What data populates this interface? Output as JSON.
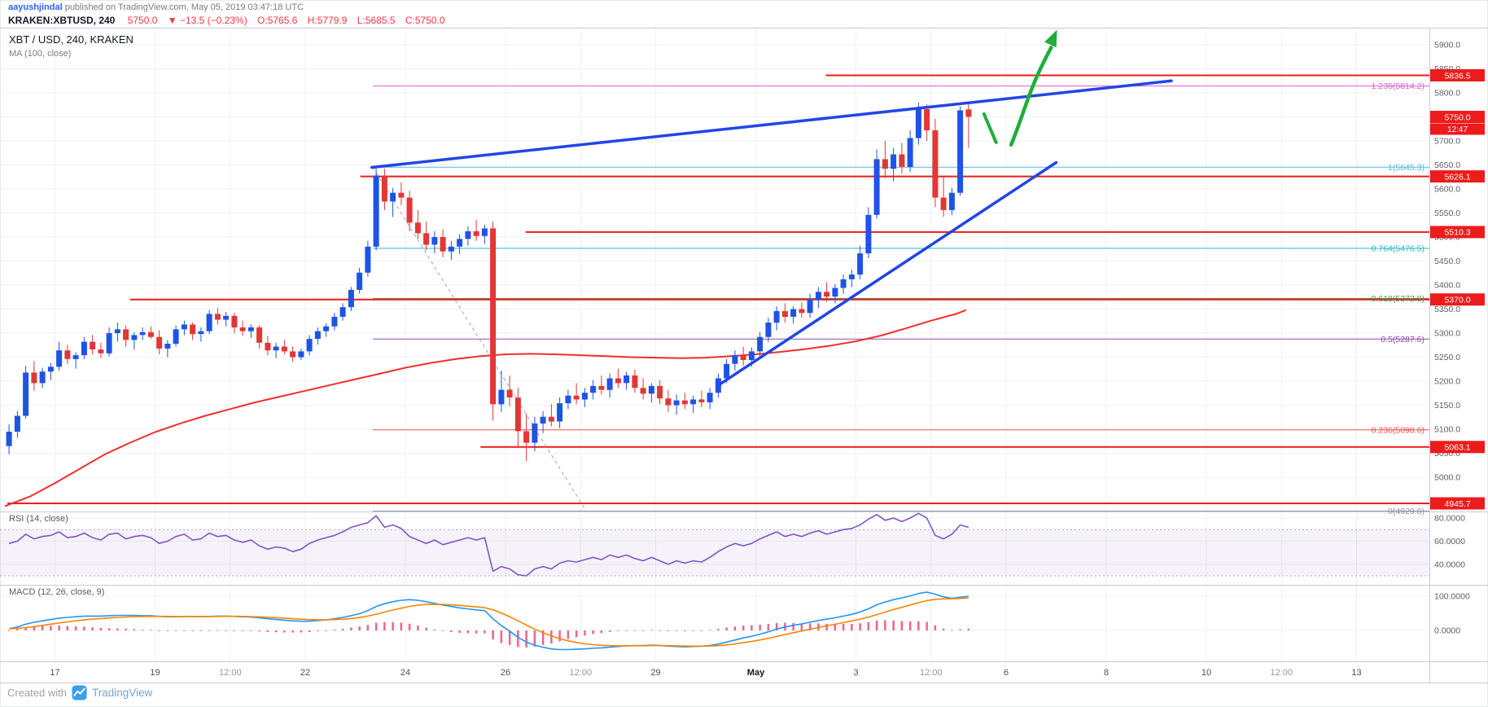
{
  "header": {
    "author": "aayushjindal",
    "published": " published on TradingView.com, May 05, 2019 03:47:18 UTC",
    "symbol": "KRAKEN:XBTUSD, 240",
    "last": "5750.0",
    "change": "▼ −13.5 (−0.23%)",
    "o_label": "O:",
    "o_val": "5765.6",
    "h_label": "H:",
    "h_val": "5779.9",
    "l_label": "L:",
    "l_val": "5685.5",
    "c_label": "C:",
    "c_val": "5750.0"
  },
  "legends": {
    "symbol": "XBT / USD, 240, KRAKEN",
    "ma": "MA (100, close)",
    "rsi": "RSI (14, close)",
    "macd": "MACD (12, 26, close, 9)"
  },
  "footer": {
    "created_with": "Created with",
    "brand": "TradingView",
    "logo_icon": "tradingview-logo"
  },
  "colors": {
    "up": "#1e53e5",
    "down": "#e33636",
    "ma": "#f22e2e",
    "red_line": "#ec1c1c",
    "trend_blue": "#2146e6",
    "green": "#1fad3c",
    "grid": "#eef0f3",
    "separator": "#c9ccd3",
    "axis_text": "#5a5e68",
    "time_text": "#4a4e57",
    "time_text_light": "#9598a1",
    "month_text": "#131722",
    "rsi_line": "#7e57c2",
    "rsi_band": "rgba(126,87,194,0.08)",
    "rsi_band_edge": "#aaadb8",
    "macd_line": "#2196f3",
    "macd_signal": "#f78500",
    "macd_hist": "#f06292",
    "dashed": "#a0a3ab",
    "badge_text": "#ffffff"
  },
  "chart_data": {
    "type": "candlestick",
    "symbol": "KRAKEN:XBTUSD",
    "interval": "240",
    "start": "2019-04-16 00:00 UTC",
    "candles_per_day": 6,
    "candles": [
      [
        5065,
        5110,
        5048,
        5095
      ],
      [
        5095,
        5138,
        5082,
        5128
      ],
      [
        5128,
        5232,
        5122,
        5218
      ],
      [
        5218,
        5242,
        5180,
        5196
      ],
      [
        5196,
        5228,
        5186,
        5220
      ],
      [
        5220,
        5238,
        5202,
        5230
      ],
      [
        5230,
        5282,
        5222,
        5264
      ],
      [
        5264,
        5276,
        5236,
        5246
      ],
      [
        5246,
        5260,
        5226,
        5254
      ],
      [
        5254,
        5292,
        5246,
        5282
      ],
      [
        5282,
        5296,
        5256,
        5266
      ],
      [
        5266,
        5280,
        5248,
        5258
      ],
      [
        5258,
        5312,
        5252,
        5300
      ],
      [
        5300,
        5322,
        5282,
        5308
      ],
      [
        5308,
        5316,
        5272,
        5286
      ],
      [
        5286,
        5302,
        5266,
        5296
      ],
      [
        5296,
        5312,
        5286,
        5302
      ],
      [
        5302,
        5314,
        5288,
        5292
      ],
      [
        5292,
        5306,
        5256,
        5268
      ],
      [
        5268,
        5286,
        5250,
        5278
      ],
      [
        5278,
        5316,
        5272,
        5308
      ],
      [
        5308,
        5326,
        5296,
        5318
      ],
      [
        5318,
        5322,
        5286,
        5298
      ],
      [
        5298,
        5312,
        5282,
        5304
      ],
      [
        5304,
        5348,
        5298,
        5340
      ],
      [
        5340,
        5352,
        5318,
        5328
      ],
      [
        5328,
        5344,
        5314,
        5336
      ],
      [
        5336,
        5342,
        5300,
        5312
      ],
      [
        5312,
        5326,
        5294,
        5304
      ],
      [
        5304,
        5318,
        5290,
        5312
      ],
      [
        5312,
        5316,
        5268,
        5280
      ],
      [
        5280,
        5294,
        5254,
        5264
      ],
      [
        5264,
        5280,
        5248,
        5272
      ],
      [
        5272,
        5286,
        5256,
        5262
      ],
      [
        5262,
        5272,
        5240,
        5250
      ],
      [
        5250,
        5268,
        5244,
        5262
      ],
      [
        5262,
        5296,
        5254,
        5288
      ],
      [
        5288,
        5312,
        5276,
        5304
      ],
      [
        5304,
        5320,
        5292,
        5314
      ],
      [
        5314,
        5342,
        5306,
        5334
      ],
      [
        5334,
        5362,
        5326,
        5354
      ],
      [
        5354,
        5396,
        5346,
        5390
      ],
      [
        5390,
        5436,
        5382,
        5426
      ],
      [
        5426,
        5492,
        5418,
        5480
      ],
      [
        5480,
        5648,
        5472,
        5628
      ],
      [
        5628,
        5642,
        5556,
        5574
      ],
      [
        5574,
        5602,
        5542,
        5592
      ],
      [
        5592,
        5614,
        5566,
        5582
      ],
      [
        5582,
        5596,
        5512,
        5530
      ],
      [
        5530,
        5556,
        5496,
        5508
      ],
      [
        5508,
        5532,
        5472,
        5484
      ],
      [
        5484,
        5512,
        5466,
        5500
      ],
      [
        5500,
        5516,
        5458,
        5470
      ],
      [
        5470,
        5492,
        5452,
        5480
      ],
      [
        5480,
        5506,
        5464,
        5496
      ],
      [
        5496,
        5522,
        5482,
        5512
      ],
      [
        5512,
        5536,
        5492,
        5502
      ],
      [
        5502,
        5526,
        5486,
        5518
      ],
      [
        5518,
        5532,
        5118,
        5152
      ],
      [
        5152,
        5222,
        5136,
        5182
      ],
      [
        5182,
        5212,
        5148,
        5166
      ],
      [
        5166,
        5186,
        5062,
        5096
      ],
      [
        5096,
        5132,
        5034,
        5072
      ],
      [
        5072,
        5126,
        5054,
        5112
      ],
      [
        5112,
        5138,
        5092,
        5126
      ],
      [
        5126,
        5152,
        5106,
        5116
      ],
      [
        5116,
        5166,
        5102,
        5154
      ],
      [
        5154,
        5182,
        5142,
        5170
      ],
      [
        5170,
        5196,
        5152,
        5162
      ],
      [
        5162,
        5186,
        5146,
        5176
      ],
      [
        5176,
        5202,
        5162,
        5190
      ],
      [
        5190,
        5212,
        5172,
        5182
      ],
      [
        5182,
        5216,
        5166,
        5206
      ],
      [
        5206,
        5226,
        5186,
        5196
      ],
      [
        5196,
        5220,
        5182,
        5212
      ],
      [
        5212,
        5224,
        5176,
        5186
      ],
      [
        5186,
        5206,
        5162,
        5174
      ],
      [
        5174,
        5196,
        5156,
        5190
      ],
      [
        5190,
        5202,
        5152,
        5164
      ],
      [
        5164,
        5182,
        5136,
        5150
      ],
      [
        5150,
        5172,
        5130,
        5160
      ],
      [
        5160,
        5176,
        5142,
        5152
      ],
      [
        5152,
        5170,
        5134,
        5162
      ],
      [
        5162,
        5180,
        5146,
        5156
      ],
      [
        5156,
        5186,
        5142,
        5176
      ],
      [
        5176,
        5216,
        5166,
        5206
      ],
      [
        5206,
        5246,
        5196,
        5236
      ],
      [
        5236,
        5264,
        5222,
        5254
      ],
      [
        5254,
        5272,
        5232,
        5244
      ],
      [
        5244,
        5270,
        5230,
        5262
      ],
      [
        5262,
        5302,
        5252,
        5292
      ],
      [
        5292,
        5332,
        5282,
        5322
      ],
      [
        5322,
        5356,
        5306,
        5346
      ],
      [
        5346,
        5362,
        5322,
        5334
      ],
      [
        5334,
        5356,
        5320,
        5350
      ],
      [
        5350,
        5364,
        5332,
        5342
      ],
      [
        5342,
        5382,
        5332,
        5370
      ],
      [
        5370,
        5396,
        5352,
        5386
      ],
      [
        5386,
        5406,
        5366,
        5376
      ],
      [
        5376,
        5402,
        5362,
        5394
      ],
      [
        5394,
        5422,
        5382,
        5412
      ],
      [
        5412,
        5432,
        5396,
        5422
      ],
      [
        5422,
        5482,
        5412,
        5466
      ],
      [
        5466,
        5562,
        5456,
        5546
      ],
      [
        5546,
        5682,
        5538,
        5662
      ],
      [
        5662,
        5700,
        5622,
        5642
      ],
      [
        5642,
        5686,
        5616,
        5672
      ],
      [
        5672,
        5696,
        5632,
        5646
      ],
      [
        5646,
        5722,
        5636,
        5706
      ],
      [
        5706,
        5780,
        5692,
        5766
      ],
      [
        5766,
        5776,
        5700,
        5722
      ],
      [
        5722,
        5746,
        5562,
        5582
      ],
      [
        5582,
        5626,
        5542,
        5556
      ],
      [
        5556,
        5602,
        5546,
        5592
      ],
      [
        5592,
        5772,
        5586,
        5763.5
      ],
      [
        5765.6,
        5779.9,
        5685.5,
        5750.0
      ]
    ],
    "rsi": [
      58,
      60,
      66,
      62,
      64,
      65,
      68,
      63,
      64,
      67,
      63,
      61,
      66,
      67,
      62,
      64,
      65,
      63,
      58,
      60,
      64,
      66,
      61,
      62,
      67,
      64,
      65,
      61,
      59,
      61,
      56,
      53,
      55,
      54,
      51,
      53,
      58,
      61,
      63,
      65,
      68,
      72,
      74,
      76,
      82,
      72,
      74,
      71,
      64,
      61,
      58,
      61,
      57,
      59,
      61,
      63,
      61,
      63,
      34,
      38,
      36,
      31,
      30,
      36,
      38,
      36,
      41,
      43,
      42,
      44,
      46,
      44,
      48,
      46,
      48,
      45,
      43,
      46,
      43,
      40,
      43,
      41,
      43,
      42,
      46,
      51,
      55,
      58,
      56,
      58,
      62,
      65,
      68,
      64,
      66,
      64,
      67,
      69,
      66,
      68,
      70,
      71,
      74,
      79,
      83,
      78,
      80,
      77,
      80,
      84,
      80,
      65,
      62,
      66,
      74,
      72
    ],
    "macd": [
      5,
      10,
      18,
      24,
      28,
      32,
      36,
      38,
      40,
      42,
      42,
      42,
      43,
      44,
      44,
      44,
      43,
      43,
      41,
      40,
      40,
      41,
      41,
      40,
      41,
      42,
      42,
      41,
      40,
      39,
      37,
      34,
      32,
      30,
      28,
      27,
      27,
      29,
      31,
      34,
      38,
      43,
      49,
      58,
      70,
      78,
      84,
      88,
      90,
      88,
      84,
      79,
      74,
      70,
      66,
      63,
      60,
      58,
      34,
      14,
      -2,
      -20,
      -34,
      -43,
      -49,
      -54,
      -56,
      -56,
      -55,
      -54,
      -52,
      -51,
      -49,
      -47,
      -45,
      -44,
      -44,
      -43,
      -44,
      -46,
      -47,
      -48,
      -47,
      -46,
      -44,
      -40,
      -34,
      -28,
      -22,
      -17,
      -11,
      -4,
      4,
      10,
      15,
      19,
      24,
      29,
      33,
      37,
      42,
      47,
      54,
      63,
      75,
      83,
      90,
      95,
      101,
      108,
      112,
      106,
      98,
      94,
      97,
      100
    ],
    "ma100": [
      [
        0,
        4940
      ],
      [
        0.5,
        4960
      ],
      [
        1,
        4988
      ],
      [
        1.5,
        5018
      ],
      [
        2,
        5048
      ],
      [
        2.5,
        5072
      ],
      [
        3,
        5094
      ],
      [
        3.5,
        5112
      ],
      [
        4,
        5128
      ],
      [
        4.5,
        5142
      ],
      [
        5,
        5156
      ],
      [
        5.5,
        5168
      ],
      [
        6,
        5180
      ],
      [
        6.5,
        5192
      ],
      [
        7,
        5204
      ],
      [
        7.5,
        5216
      ],
      [
        8,
        5228
      ],
      [
        8.5,
        5238
      ],
      [
        9,
        5246
      ],
      [
        9.5,
        5252
      ],
      [
        10,
        5256
      ],
      [
        10.5,
        5257
      ],
      [
        11,
        5256
      ],
      [
        11.5,
        5254
      ],
      [
        12,
        5252
      ],
      [
        12.5,
        5250
      ],
      [
        13,
        5249
      ],
      [
        13.5,
        5248
      ],
      [
        14,
        5249
      ],
      [
        14.5,
        5252
      ],
      [
        15,
        5256
      ],
      [
        15.5,
        5261
      ],
      [
        16,
        5267
      ],
      [
        16.5,
        5274
      ],
      [
        17,
        5283
      ],
      [
        17.5,
        5295
      ],
      [
        18,
        5310
      ],
      [
        18.5,
        5326
      ],
      [
        19,
        5340
      ],
      [
        19.2,
        5348
      ]
    ],
    "y_axis": {
      "min": 4950,
      "max": 5900,
      "step": 50
    },
    "x_labels": [
      {
        "day": 1,
        "label": "17",
        "type": "day"
      },
      {
        "day": 3,
        "label": "19",
        "type": "day"
      },
      {
        "day": 4.5,
        "label": "12:00",
        "type": "time"
      },
      {
        "day": 6,
        "label": "22",
        "type": "day"
      },
      {
        "day": 8,
        "label": "24",
        "type": "day"
      },
      {
        "day": 10,
        "label": "26",
        "type": "day"
      },
      {
        "day": 11.5,
        "label": "12:00",
        "type": "time"
      },
      {
        "day": 13,
        "label": "29",
        "type": "day"
      },
      {
        "day": 15,
        "label": "May",
        "type": "month"
      },
      {
        "day": 17,
        "label": "3",
        "type": "day"
      },
      {
        "day": 18.5,
        "label": "12:00",
        "type": "time"
      },
      {
        "day": 20,
        "label": "6",
        "type": "day"
      },
      {
        "day": 22,
        "label": "8",
        "type": "day"
      },
      {
        "day": 24,
        "label": "10",
        "type": "day"
      },
      {
        "day": 25.5,
        "label": "12:00",
        "type": "time"
      },
      {
        "day": 27,
        "label": "13",
        "type": "day"
      }
    ],
    "price_lines": [
      {
        "price": 5836.5,
        "from_day": 16.4,
        "badge": "5836.5"
      },
      {
        "price": 5626.1,
        "from_day": 7.1,
        "badge": "5626.1"
      },
      {
        "price": 5510.3,
        "from_day": 10.4,
        "badge": "5510.3"
      },
      {
        "price": 5370.0,
        "from_day": 2.5,
        "badge": "5370.0"
      },
      {
        "price": 5063.1,
        "from_day": 9.5,
        "badge": "5063.1"
      },
      {
        "price": 4945.7,
        "from_day": 0.05,
        "badge": "4945.7"
      }
    ],
    "fib_from_day": 7.35,
    "fib_levels": [
      {
        "label": "1.236(5814.2)",
        "price": 5814.2,
        "color": "#d45fd0"
      },
      {
        "label": "1(5645.3)",
        "price": 5645.3,
        "color": "#52b9e0"
      },
      {
        "label": "0.764(5476.5)",
        "price": 5476.5,
        "color": "#2bb8cc"
      },
      {
        "label": "0.618(5372.0)",
        "price": 5372.0,
        "color": "#3f9b44"
      },
      {
        "label": "0.5(5287.6)",
        "price": 5287.6,
        "color": "#8c4bab"
      },
      {
        "label": "0.236(5098.6)",
        "price": 5098.6,
        "color": "#ef5350"
      },
      {
        "label": "0(4929.8)",
        "price": 4929.8,
        "color": "#9094a0"
      }
    ],
    "annotations": {
      "trend_lines": [
        {
          "from": [
            7.33,
            5645
          ],
          "to": [
            23.3,
            5825
          ]
        },
        {
          "from": [
            14.3,
            5195
          ],
          "to": [
            21.0,
            5655
          ]
        }
      ],
      "dashed_line": {
        "from": [
          7.35,
          5645
        ],
        "to": [
          11.6,
          4932
        ]
      },
      "arrow": {
        "tail": [
          20.1,
          5692
        ],
        "tip": [
          20.9,
          5908
        ]
      },
      "tick": {
        "from": [
          19.56,
          5756
        ],
        "to": [
          19.8,
          5697
        ]
      }
    },
    "last_price": {
      "price": 5750.0,
      "value": "5750.0",
      "countdown": "12:47"
    },
    "rsi_panel": {
      "labels": [
        80,
        60,
        40
      ],
      "band": [
        30,
        70
      ]
    },
    "macd_panel": {
      "labels": [
        100,
        0
      ]
    }
  }
}
